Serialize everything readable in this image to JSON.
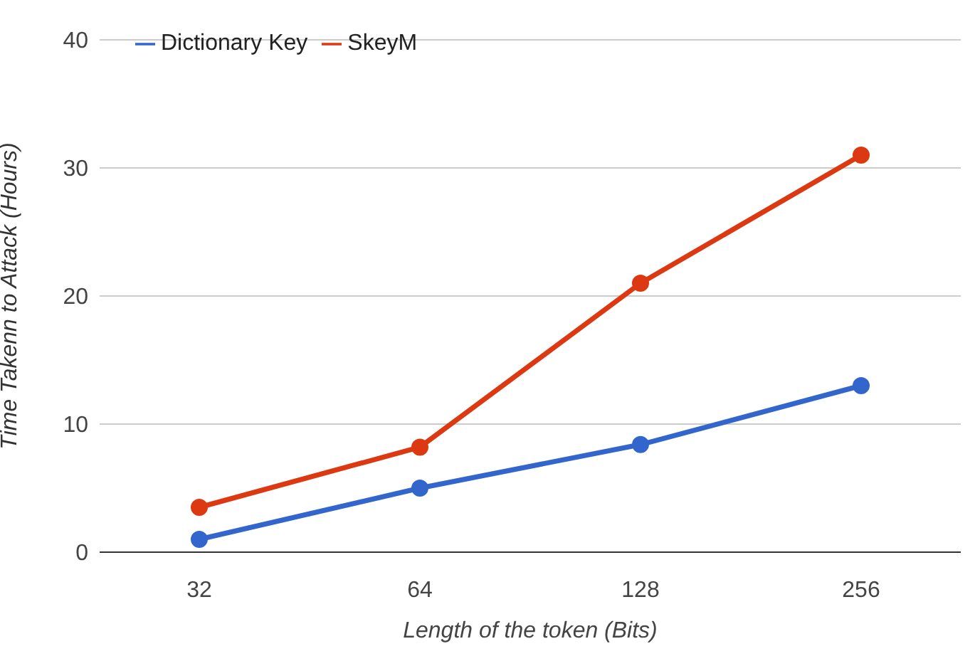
{
  "chart_data": {
    "type": "line",
    "xlabel": "Length of the token (Bits)",
    "ylabel": "Time Takenn to Attack (Hours)",
    "categories": [
      "32",
      "64",
      "128",
      "256"
    ],
    "series": [
      {
        "name": "Dictionary Key",
        "color": "#3366cc",
        "values": [
          1,
          5,
          8.4,
          13
        ]
      },
      {
        "name": "SkeyM",
        "color": "#dc3912",
        "values": [
          3.5,
          8.2,
          21,
          31
        ]
      }
    ],
    "ylim": [
      0,
      40
    ],
    "yticks": [
      0,
      10,
      20,
      30,
      40
    ],
    "grid": "y",
    "legend": "top left",
    "marker": "circle",
    "line_style": "solid"
  }
}
